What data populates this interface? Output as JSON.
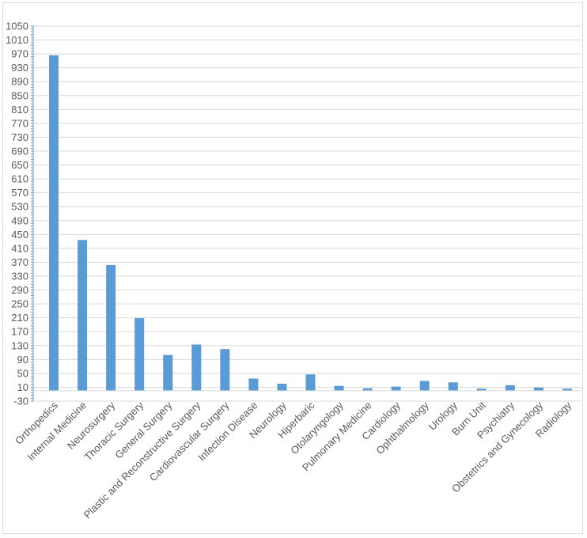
{
  "chart_data": {
    "type": "bar",
    "title": "",
    "xlabel": "",
    "ylabel": "",
    "ylim": [
      -30,
      1050
    ],
    "ytick_step": 40,
    "yticks": [
      "-30",
      "10",
      "50",
      "90",
      "130",
      "170",
      "210",
      "250",
      "290",
      "330",
      "370",
      "410",
      "450",
      "490",
      "530",
      "570",
      "610",
      "650",
      "690",
      "730",
      "770",
      "810",
      "850",
      "890",
      "930",
      "970",
      "1010",
      "1050"
    ],
    "grid": true,
    "legend": "none",
    "bar_color": "#5b9bd5",
    "categories": [
      "Orthopedics",
      "Internal Medicine",
      "Neurosurgery",
      "Thoracic Surgery",
      "General Surgery",
      "Plastic and Reconstructive Surgery",
      "Cardiovascular Surgery",
      "Infection Disease",
      "Neurology",
      "Hiperbaric",
      "Otolaryngology",
      "Pulmonary Medicine",
      "Cardiology",
      "Ophthalmology",
      "Urology",
      "Burn Unit",
      "Psychiatry",
      "Obstetrics and Gynecology",
      "Radiology"
    ],
    "values": [
      966,
      434,
      362,
      209,
      103,
      133,
      120,
      35,
      20,
      47,
      14,
      7,
      12,
      28,
      24,
      6,
      16,
      9,
      6
    ]
  }
}
